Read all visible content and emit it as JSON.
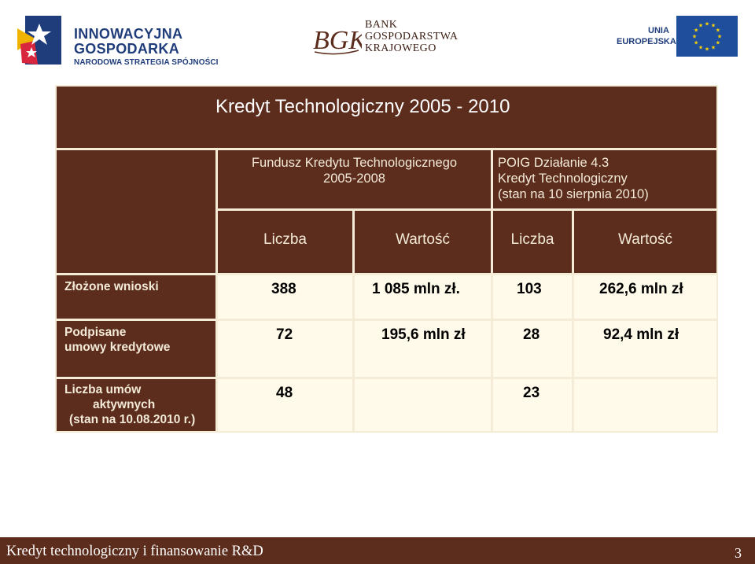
{
  "logos": {
    "ig": {
      "line1": "INNOWACYJNA",
      "line2": "GOSPODARKA",
      "line3": "NARODOWA STRATEGIA SPÓJNOŚCI"
    },
    "bgk": {
      "monogram": "BGK",
      "line1": "BANK",
      "line2": "GOSPODARSTWA",
      "line3": "KRAJOWEGO"
    },
    "eu": {
      "line1": "UNIA",
      "line2": "EUROPEJSKA"
    }
  },
  "table": {
    "title": "Kredyt Technologiczny 2005 - 2010",
    "group1": {
      "line1": "Fundusz Kredytu Technologicznego",
      "line2": "2005-2008"
    },
    "group2": {
      "line1": "POIG Działanie 4.3",
      "line2": "Kredyt Technologiczny",
      "line3": "(stan na 10 sierpnia 2010)"
    },
    "columns": [
      "Liczba",
      "Wartość",
      "Liczba",
      "Wartość"
    ],
    "rows": [
      {
        "label_lines": [
          "Złożone wnioski"
        ],
        "values": [
          "388",
          "1 085 mln zł.",
          "103",
          "262,6 mln zł"
        ]
      },
      {
        "label_lines": [
          "Podpisane",
          "umowy kredytowe"
        ],
        "values": [
          "72",
          "195,6 mln zł",
          "28",
          "92,4 mln zł"
        ]
      },
      {
        "label_lines": [
          "Liczba umów",
          "aktywnych",
          "(stan na 10.08.2010 r.)"
        ],
        "values": [
          "48",
          "",
          "23",
          ""
        ]
      }
    ]
  },
  "footer": {
    "text": "Kredyt technologiczny i finansowanie R&D",
    "page": "3"
  },
  "colors": {
    "brown": "#5c2c1c",
    "cell_light": "#fffaea",
    "navy": "#1f3d7a"
  }
}
